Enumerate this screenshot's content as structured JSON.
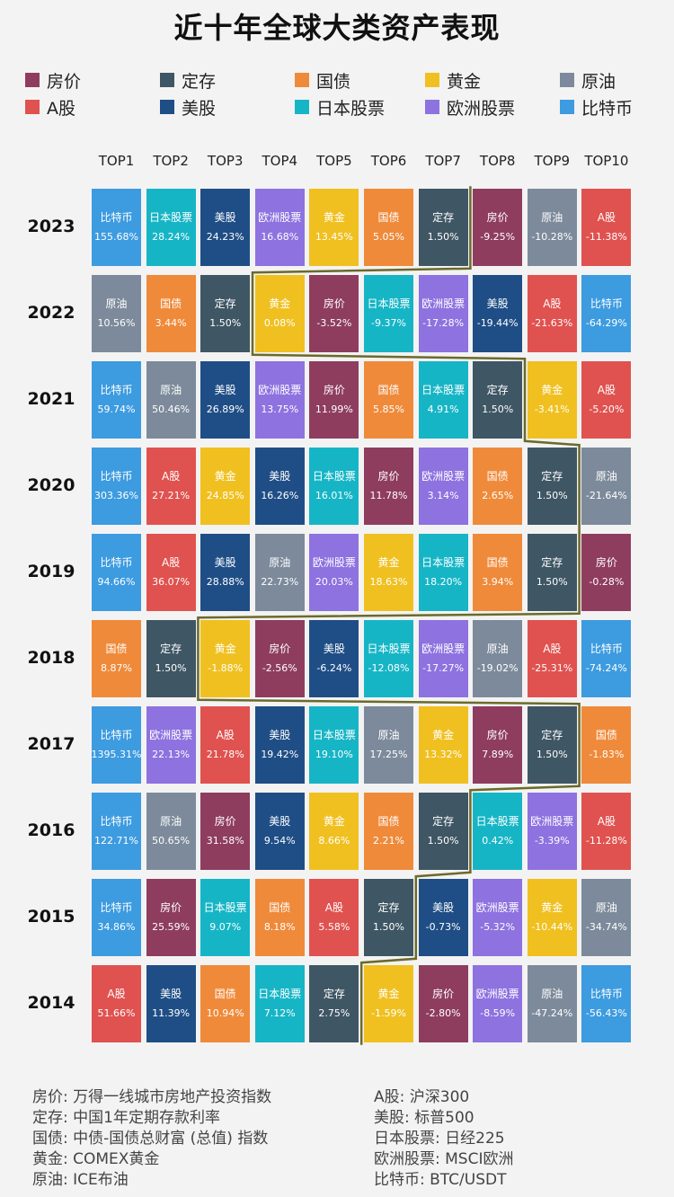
{
  "title": "近十年全球大类资产表现",
  "colors": {
    "房价": "#8e3d5f",
    "定存": "#3f5664",
    "国债": "#ef8a3a",
    "黄金": "#f0c020",
    "原油": "#7c8a9b",
    "A股": "#e0524f",
    "美股": "#1f4e86",
    "日本股票": "#16b5c6",
    "欧洲股票": "#8d72e0",
    "比特币": "#3d9be0"
  },
  "legend": [
    "房价",
    "定存",
    "国债",
    "黄金",
    "原油",
    "A股",
    "美股",
    "日本股票",
    "欧洲股票",
    "比特币"
  ],
  "chart_data": {
    "type": "table",
    "title": "近十年全球大类资产表现",
    "columns": [
      "TOP1",
      "TOP2",
      "TOP3",
      "TOP4",
      "TOP5",
      "TOP6",
      "TOP7",
      "TOP8",
      "TOP9",
      "TOP10"
    ],
    "rows": [
      {
        "year": "2023",
        "cells": [
          {
            "asset": "比特币",
            "value": "155.68%"
          },
          {
            "asset": "日本股票",
            "value": "28.24%"
          },
          {
            "asset": "美股",
            "value": "24.23%"
          },
          {
            "asset": "欧洲股票",
            "value": "16.68%"
          },
          {
            "asset": "黄金",
            "value": "13.45%"
          },
          {
            "asset": "国债",
            "value": "5.05%"
          },
          {
            "asset": "定存",
            "value": "1.50%"
          },
          {
            "asset": "房价",
            "value": "-9.25%"
          },
          {
            "asset": "原油",
            "value": "-10.28%"
          },
          {
            "asset": "A股",
            "value": "-11.38%"
          }
        ]
      },
      {
        "year": "2022",
        "cells": [
          {
            "asset": "原油",
            "value": "10.56%"
          },
          {
            "asset": "国债",
            "value": "3.44%"
          },
          {
            "asset": "定存",
            "value": "1.50%"
          },
          {
            "asset": "黄金",
            "value": "0.08%"
          },
          {
            "asset": "房价",
            "value": "-3.52%"
          },
          {
            "asset": "日本股票",
            "value": "-9.37%"
          },
          {
            "asset": "欧洲股票",
            "value": "-17.28%"
          },
          {
            "asset": "美股",
            "value": "-19.44%"
          },
          {
            "asset": "A股",
            "value": "-21.63%"
          },
          {
            "asset": "比特币",
            "value": "-64.29%"
          }
        ]
      },
      {
        "year": "2021",
        "cells": [
          {
            "asset": "比特币",
            "value": "59.74%"
          },
          {
            "asset": "原油",
            "value": "50.46%"
          },
          {
            "asset": "美股",
            "value": "26.89%"
          },
          {
            "asset": "欧洲股票",
            "value": "13.75%"
          },
          {
            "asset": "房价",
            "value": "11.99%"
          },
          {
            "asset": "国债",
            "value": "5.85%"
          },
          {
            "asset": "日本股票",
            "value": "4.91%"
          },
          {
            "asset": "定存",
            "value": "1.50%"
          },
          {
            "asset": "黄金",
            "value": "-3.41%"
          },
          {
            "asset": "A股",
            "value": "-5.20%"
          }
        ]
      },
      {
        "year": "2020",
        "cells": [
          {
            "asset": "比特币",
            "value": "303.36%"
          },
          {
            "asset": "A股",
            "value": "27.21%"
          },
          {
            "asset": "黄金",
            "value": "24.85%"
          },
          {
            "asset": "美股",
            "value": "16.26%"
          },
          {
            "asset": "日本股票",
            "value": "16.01%"
          },
          {
            "asset": "房价",
            "value": "11.78%"
          },
          {
            "asset": "欧洲股票",
            "value": "3.14%"
          },
          {
            "asset": "国债",
            "value": "2.65%"
          },
          {
            "asset": "定存",
            "value": "1.50%"
          },
          {
            "asset": "原油",
            "value": "-21.64%"
          }
        ]
      },
      {
        "year": "2019",
        "cells": [
          {
            "asset": "比特币",
            "value": "94.66%"
          },
          {
            "asset": "A股",
            "value": "36.07%"
          },
          {
            "asset": "美股",
            "value": "28.88%"
          },
          {
            "asset": "原油",
            "value": "22.73%"
          },
          {
            "asset": "欧洲股票",
            "value": "20.03%"
          },
          {
            "asset": "黄金",
            "value": "18.63%"
          },
          {
            "asset": "日本股票",
            "value": "18.20%"
          },
          {
            "asset": "国债",
            "value": "3.94%"
          },
          {
            "asset": "定存",
            "value": "1.50%"
          },
          {
            "asset": "房价",
            "value": "-0.28%"
          }
        ]
      },
      {
        "year": "2018",
        "cells": [
          {
            "asset": "国债",
            "value": "8.87%"
          },
          {
            "asset": "定存",
            "value": "1.50%"
          },
          {
            "asset": "黄金",
            "value": "-1.88%"
          },
          {
            "asset": "房价",
            "value": "-2.56%"
          },
          {
            "asset": "美股",
            "value": "-6.24%"
          },
          {
            "asset": "日本股票",
            "value": "-12.08%"
          },
          {
            "asset": "欧洲股票",
            "value": "-17.27%"
          },
          {
            "asset": "原油",
            "value": "-19.02%"
          },
          {
            "asset": "A股",
            "value": "-25.31%"
          },
          {
            "asset": "比特币",
            "value": "-74.24%"
          }
        ]
      },
      {
        "year": "2017",
        "cells": [
          {
            "asset": "比特币",
            "value": "1395.31%"
          },
          {
            "asset": "欧洲股票",
            "value": "22.13%"
          },
          {
            "asset": "A股",
            "value": "21.78%"
          },
          {
            "asset": "美股",
            "value": "19.42%"
          },
          {
            "asset": "日本股票",
            "value": "19.10%"
          },
          {
            "asset": "原油",
            "value": "17.25%"
          },
          {
            "asset": "黄金",
            "value": "13.32%"
          },
          {
            "asset": "房价",
            "value": "7.89%"
          },
          {
            "asset": "定存",
            "value": "1.50%"
          },
          {
            "asset": "国债",
            "value": "-1.83%"
          }
        ]
      },
      {
        "year": "2016",
        "cells": [
          {
            "asset": "比特币",
            "value": "122.71%"
          },
          {
            "asset": "原油",
            "value": "50.65%"
          },
          {
            "asset": "房价",
            "value": "31.58%"
          },
          {
            "asset": "美股",
            "value": "9.54%"
          },
          {
            "asset": "黄金",
            "value": "8.66%"
          },
          {
            "asset": "国债",
            "value": "2.21%"
          },
          {
            "asset": "定存",
            "value": "1.50%"
          },
          {
            "asset": "日本股票",
            "value": "0.42%"
          },
          {
            "asset": "欧洲股票",
            "value": "-3.39%"
          },
          {
            "asset": "A股",
            "value": "-11.28%"
          }
        ]
      },
      {
        "year": "2015",
        "cells": [
          {
            "asset": "比特币",
            "value": "34.86%"
          },
          {
            "asset": "房价",
            "value": "25.59%"
          },
          {
            "asset": "日本股票",
            "value": "9.07%"
          },
          {
            "asset": "国债",
            "value": "8.18%"
          },
          {
            "asset": "A股",
            "value": "5.58%"
          },
          {
            "asset": "定存",
            "value": "1.50%"
          },
          {
            "asset": "美股",
            "value": "-0.73%"
          },
          {
            "asset": "欧洲股票",
            "value": "-5.32%"
          },
          {
            "asset": "黄金",
            "value": "-10.44%"
          },
          {
            "asset": "原油",
            "value": "-34.74%"
          }
        ]
      },
      {
        "year": "2014",
        "cells": [
          {
            "asset": "A股",
            "value": "51.66%"
          },
          {
            "asset": "美股",
            "value": "11.39%"
          },
          {
            "asset": "国债",
            "value": "10.94%"
          },
          {
            "asset": "日本股票",
            "value": "7.12%"
          },
          {
            "asset": "定存",
            "value": "2.75%"
          },
          {
            "asset": "黄金",
            "value": "-1.59%"
          },
          {
            "asset": "房价",
            "value": "-2.80%"
          },
          {
            "asset": "欧洲股票",
            "value": "-8.59%"
          },
          {
            "asset": "原油",
            "value": "-47.24%"
          },
          {
            "asset": "比特币",
            "value": "-56.43%"
          }
        ]
      }
    ]
  },
  "notes": [
    "房价: 万得一线城市房地产投资指数",
    "定存: 中国1年定期存款利率",
    "国债: 中债-国债总财富 (总值) 指数",
    "黄金: COMEX黄金",
    "原油: ICE布油",
    "A股: 沪深300",
    "美股: 标普500",
    "日本股票: 日经225",
    "欧洲股票: MSCI欧洲",
    "比特币: BTC/USDT"
  ]
}
